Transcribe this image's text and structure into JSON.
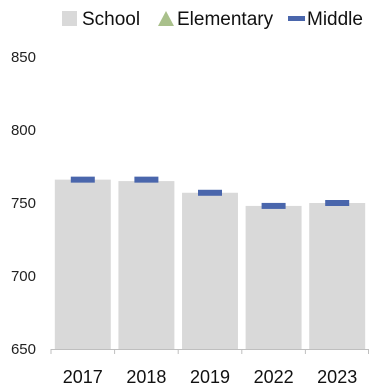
{
  "chart_data": {
    "type": "bar",
    "categories": [
      "2017",
      "2018",
      "2019",
      "2022",
      "2023"
    ],
    "series": [
      {
        "name": "School",
        "kind": "bar",
        "color": "#d9d9d9",
        "values": [
          766,
          765,
          757,
          748,
          750
        ]
      },
      {
        "name": "Elementary",
        "kind": "marker-triangle",
        "color": "#a9c08b",
        "values": [
          null,
          null,
          null,
          null,
          null
        ]
      },
      {
        "name": "Middle",
        "kind": "marker-dash",
        "color": "#4a66ac",
        "values": [
          766,
          766,
          757,
          748,
          750
        ]
      }
    ],
    "ylim": [
      650,
      850
    ],
    "yticks": [
      "650",
      "700",
      "750",
      "800",
      "850"
    ],
    "legend_position": "top",
    "grid": false
  }
}
